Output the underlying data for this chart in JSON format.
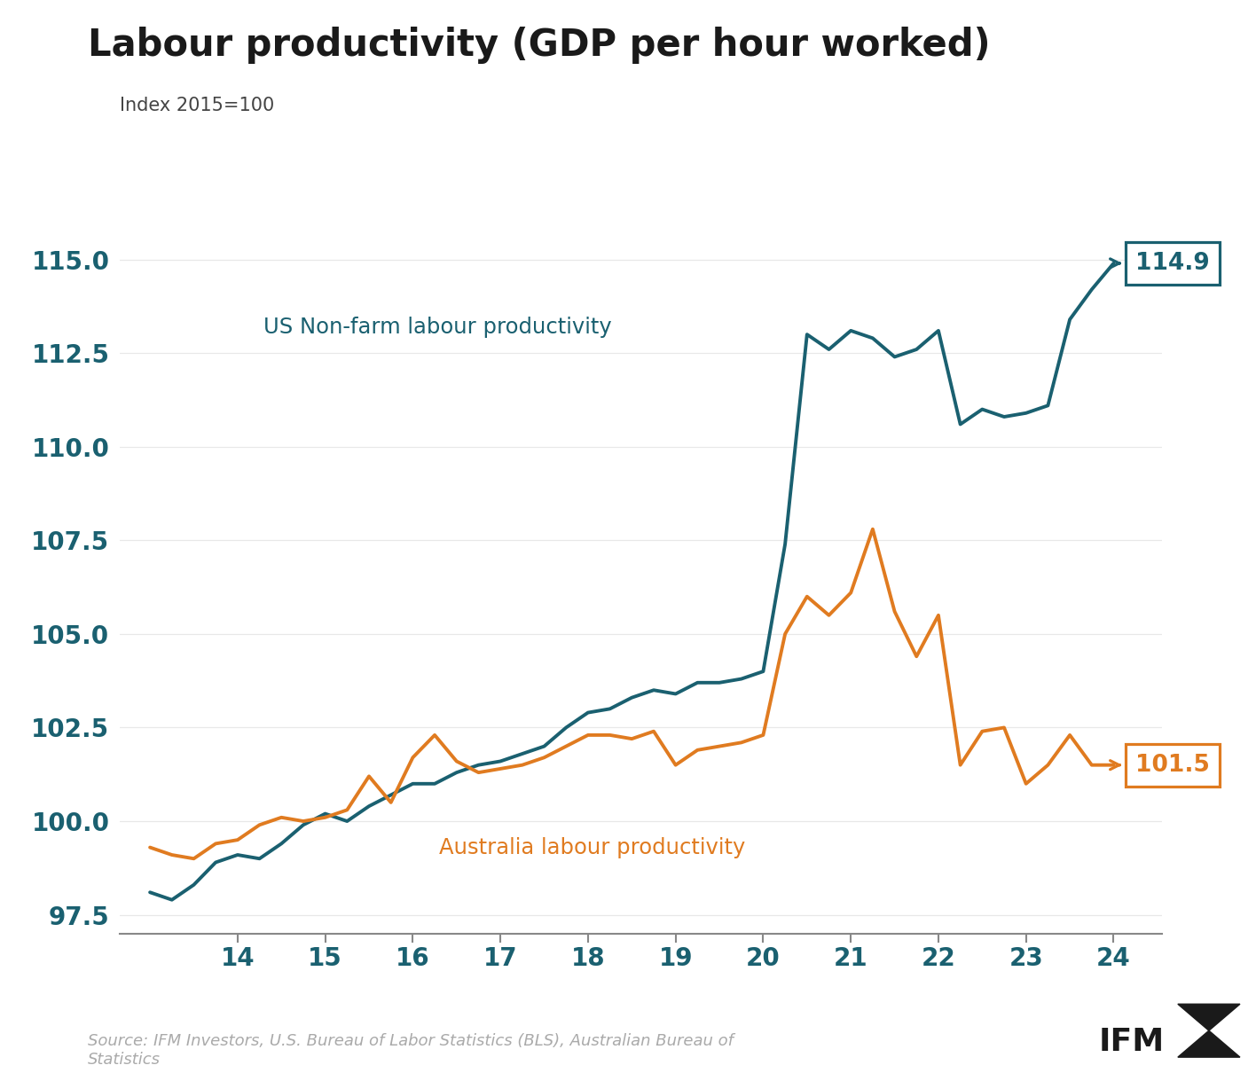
{
  "title": "Labour productivity (GDP per hour worked)",
  "subtitle": "Index 2015=100",
  "source": "Source: IFM Investors, U.S. Bureau of Labor Statistics (BLS), Australian Bureau of\nStatistics",
  "us_color": "#1a6070",
  "aus_color": "#e07b20",
  "us_label": "US Non-farm labour productivity",
  "aus_label": "Australia labour productivity",
  "us_end_value": "114.9",
  "aus_end_value": "101.5",
  "title_fontsize": 30,
  "subtitle_fontsize": 15,
  "tick_color": "#1a6070",
  "tick_fontsize": 20,
  "background": "#ffffff",
  "us_data_x": [
    13.0,
    13.25,
    13.5,
    13.75,
    14.0,
    14.25,
    14.5,
    14.75,
    15.0,
    15.25,
    15.5,
    15.75,
    16.0,
    16.25,
    16.5,
    16.75,
    17.0,
    17.25,
    17.5,
    17.75,
    18.0,
    18.25,
    18.5,
    18.75,
    19.0,
    19.25,
    19.5,
    19.75,
    20.0,
    20.25,
    20.5,
    20.75,
    21.0,
    21.25,
    21.5,
    21.75,
    22.0,
    22.25,
    22.5,
    22.75,
    23.0,
    23.25,
    23.5,
    23.75,
    24.0
  ],
  "us_data_y": [
    98.1,
    97.9,
    98.3,
    98.9,
    99.1,
    99.0,
    99.4,
    99.9,
    100.2,
    100.0,
    100.4,
    100.7,
    101.0,
    101.0,
    101.3,
    101.5,
    101.6,
    101.8,
    102.0,
    102.5,
    102.9,
    103.0,
    103.3,
    103.5,
    103.4,
    103.7,
    103.7,
    103.8,
    104.0,
    107.4,
    113.0,
    112.6,
    113.1,
    112.9,
    112.4,
    112.6,
    113.1,
    110.6,
    111.0,
    110.8,
    110.9,
    111.1,
    113.4,
    114.2,
    114.9
  ],
  "aus_data_x": [
    13.0,
    13.25,
    13.5,
    13.75,
    14.0,
    14.25,
    14.5,
    14.75,
    15.0,
    15.25,
    15.5,
    15.75,
    16.0,
    16.25,
    16.5,
    16.75,
    17.0,
    17.25,
    17.5,
    17.75,
    18.0,
    18.25,
    18.5,
    18.75,
    19.0,
    19.25,
    19.5,
    19.75,
    20.0,
    20.25,
    20.5,
    20.75,
    21.0,
    21.25,
    21.5,
    21.75,
    22.0,
    22.25,
    22.5,
    22.75,
    23.0,
    23.25,
    23.5,
    23.75,
    24.0
  ],
  "aus_data_y": [
    99.3,
    99.1,
    99.0,
    99.4,
    99.5,
    99.9,
    100.1,
    100.0,
    100.1,
    100.3,
    101.2,
    100.5,
    101.7,
    102.3,
    101.6,
    101.3,
    101.4,
    101.5,
    101.7,
    102.0,
    102.3,
    102.3,
    102.2,
    102.4,
    101.5,
    101.9,
    102.0,
    102.1,
    102.3,
    105.0,
    106.0,
    105.5,
    106.1,
    107.8,
    105.6,
    104.4,
    105.5,
    101.5,
    102.4,
    102.5,
    101.0,
    101.5,
    102.3,
    101.5,
    101.5
  ],
  "xlim": [
    12.65,
    24.55
  ],
  "ylim": [
    97.0,
    116.2
  ],
  "yticks": [
    97.5,
    100.0,
    102.5,
    105.0,
    107.5,
    110.0,
    112.5,
    115.0
  ],
  "xticks": [
    14,
    15,
    16,
    17,
    18,
    19,
    20,
    21,
    22,
    23,
    24
  ]
}
